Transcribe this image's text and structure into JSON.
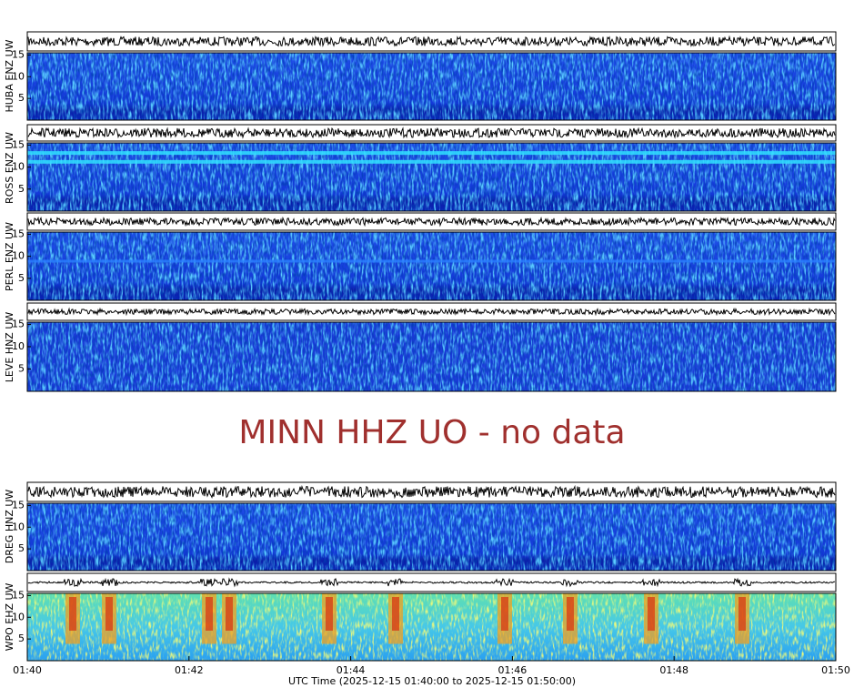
{
  "chart_data": {
    "type": "spectrogram",
    "panels": [
      {
        "label": "HUBA ENZ UW",
        "ylim": [
          0,
          15.5
        ],
        "yticks": [
          5,
          10,
          15
        ]
      },
      {
        "label": "ROSS ENZ UW",
        "ylim": [
          0,
          15.5
        ],
        "yticks": [
          5,
          10,
          15
        ]
      },
      {
        "label": "PERL ENZ UW",
        "ylim": [
          0,
          15.5
        ],
        "yticks": [
          5,
          10,
          15
        ]
      },
      {
        "label": "LEVE HNZ UW",
        "ylim": [
          0,
          15.5
        ],
        "yticks": [
          5,
          10,
          15
        ]
      },
      {
        "label": "DREG HNZ UW",
        "ylim": [
          0,
          15.5
        ],
        "yticks": [
          5,
          10,
          15
        ]
      },
      {
        "label": "WPO EHZ UW",
        "ylim": [
          0,
          15.5
        ],
        "yticks": [
          5,
          10,
          15
        ]
      }
    ],
    "no_data": "MINN HHZ UO - no data",
    "xticks": [
      "01:40",
      "01:42",
      "01:44",
      "01:46",
      "01:48",
      "01:50"
    ],
    "xlabel": "UTC Time (2025-12-15 01:40:00 to 2025-12-15 01:50:00)"
  }
}
